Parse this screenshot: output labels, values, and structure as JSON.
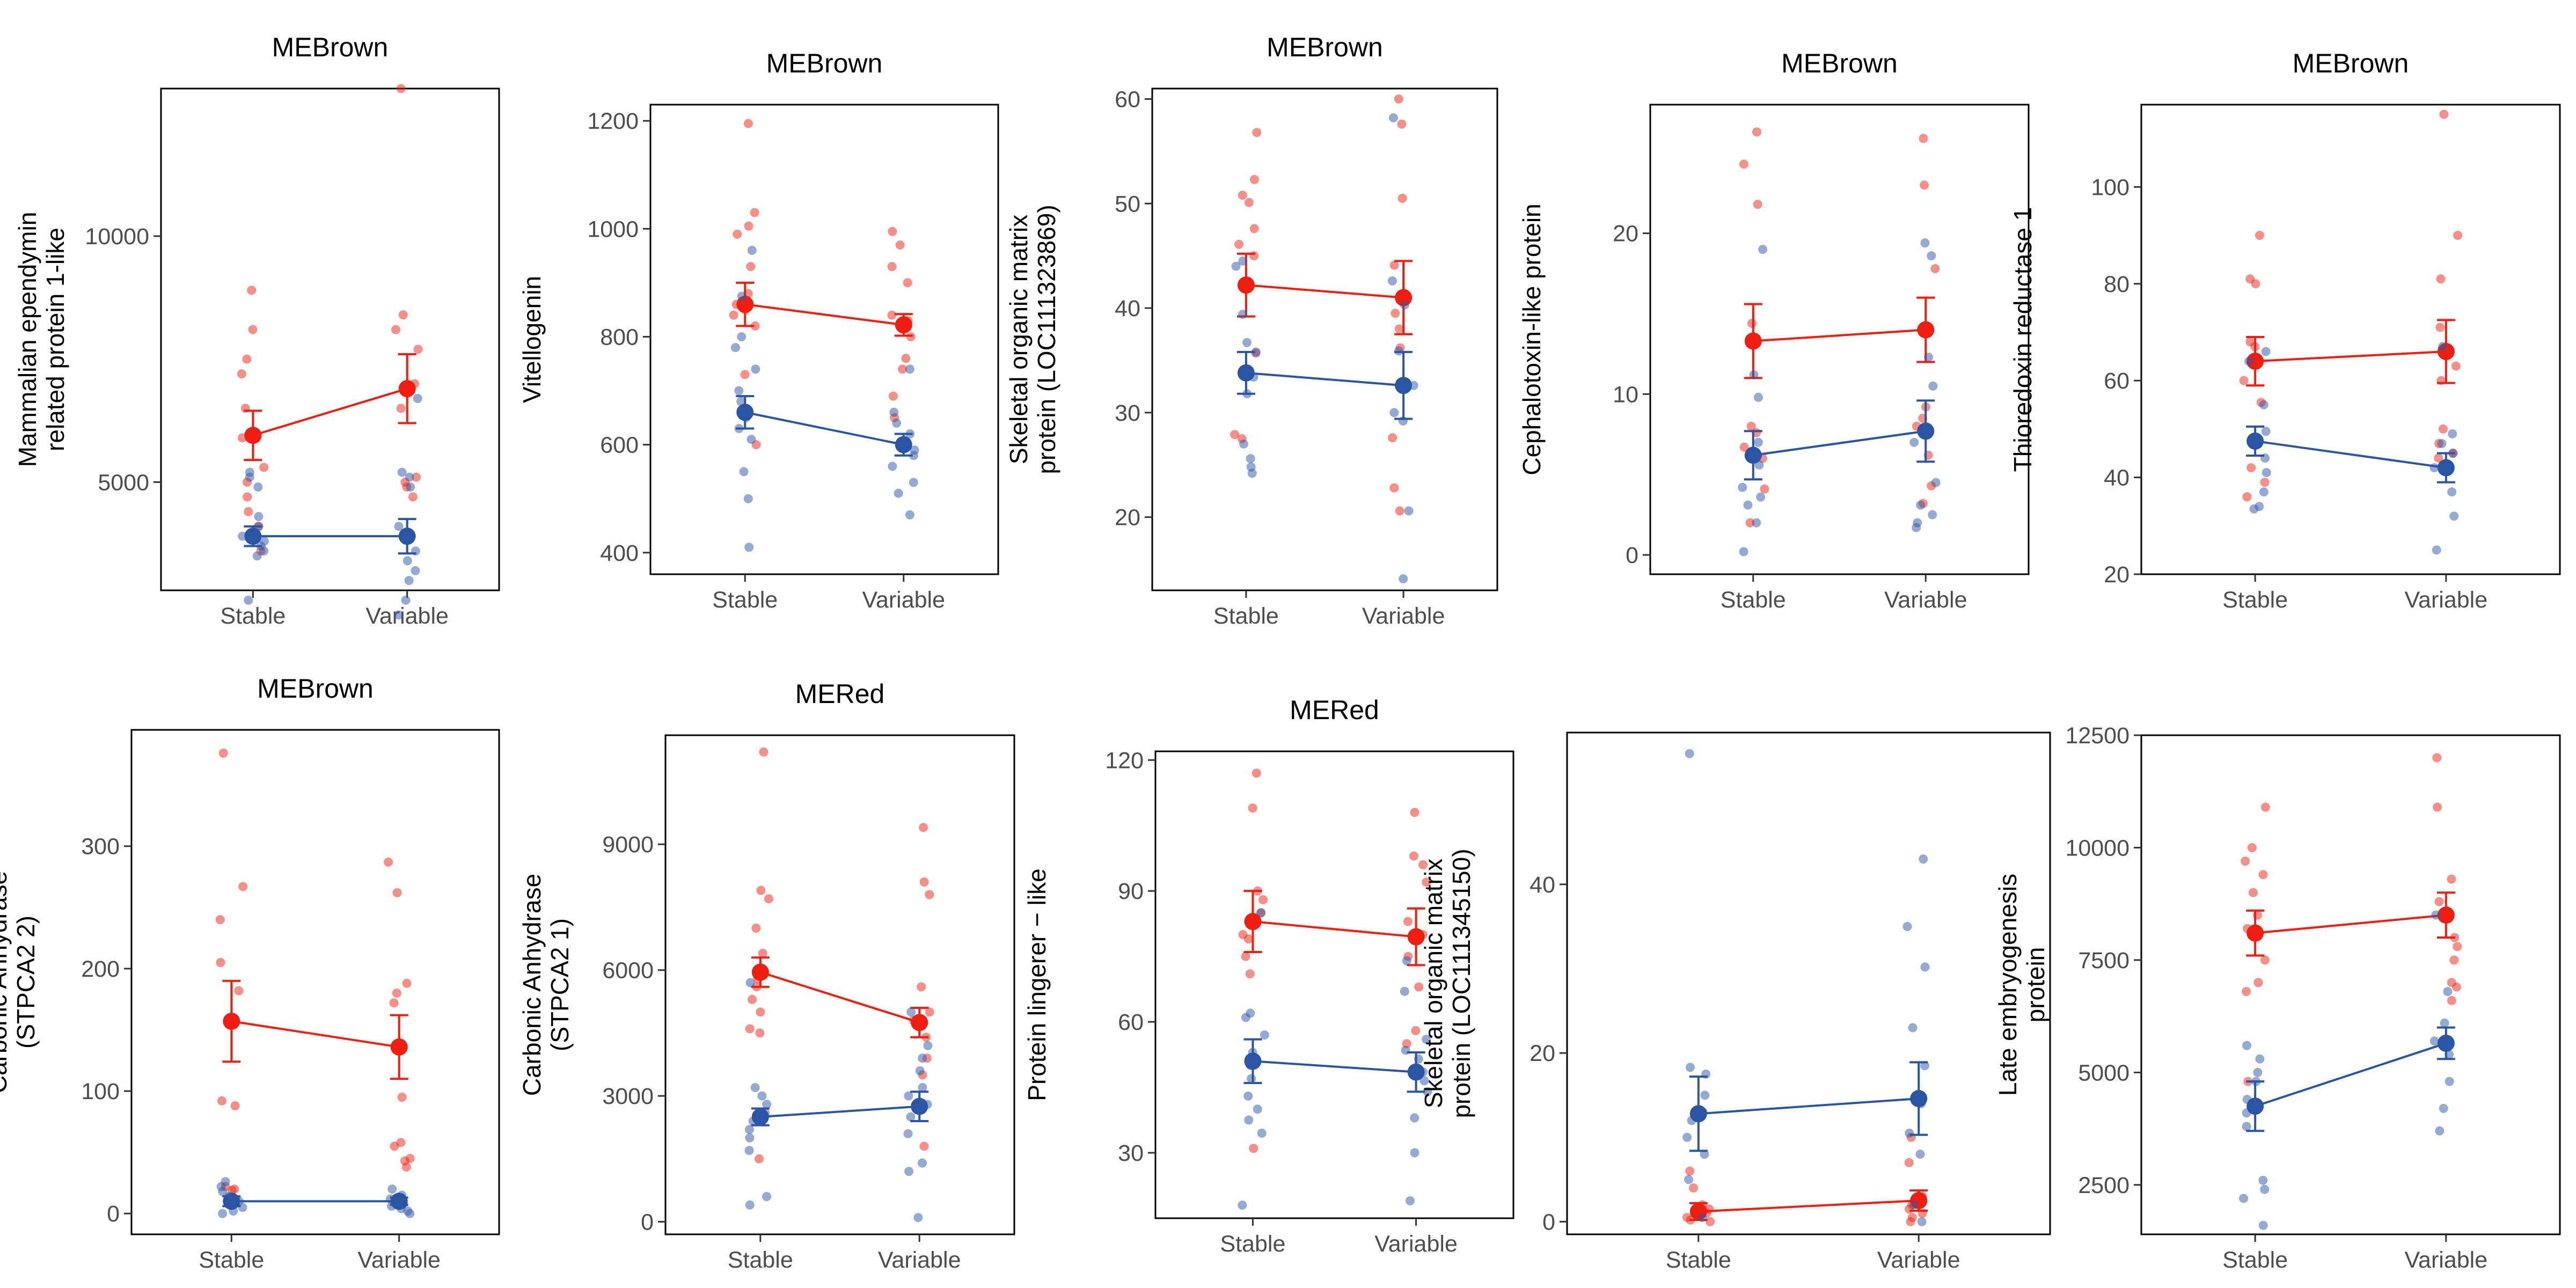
{
  "colors": {
    "red": "#f01e10",
    "blue": "#2a55a5"
  },
  "chart_data": [
    {
      "type": "scatter",
      "title": "MEBrown",
      "ylabel": [
        "Mammalian ependymin",
        "related protein 1-like"
      ],
      "categories": [
        "Stable",
        "Variable"
      ],
      "ylim": [
        2800,
        13000
      ],
      "yticks": [
        5000,
        10000
      ],
      "series": [
        {
          "color": "red",
          "means": [
            5950,
            6900
          ],
          "se": [
            500,
            700
          ],
          "points": [
            [
              8900,
              8100,
              7500,
              7200,
              6500,
              5900,
              5300,
              5000,
              4700,
              4400,
              4100,
              3600
            ],
            [
              13000,
              8400,
              8100,
              7700,
              7000,
              6500,
              5100,
              5000,
              4900,
              4700
            ]
          ]
        },
        {
          "color": "blue",
          "means": [
            3900,
            3900
          ],
          "se": [
            200,
            350
          ],
          "points": [
            [
              5200,
              5100,
              4900,
              4300,
              4100,
              3900,
              3800,
              3700,
              3600,
              3500,
              2600
            ],
            [
              6700,
              5200,
              5100,
              4900,
              4100,
              3600,
              3400,
              3200,
              3000,
              2600,
              2300
            ]
          ]
        }
      ]
    },
    {
      "type": "scatter",
      "title": "MEBrown",
      "ylabel": [
        "Vitellogenin"
      ],
      "categories": [
        "Stable",
        "Variable"
      ],
      "ylim": [
        360,
        1230
      ],
      "yticks": [
        400,
        600,
        800,
        1000,
        1200
      ],
      "series": [
        {
          "color": "red",
          "means": [
            860,
            822
          ],
          "se": [
            40,
            20
          ],
          "points": [
            [
              1195,
              1030,
              1005,
              990,
              930,
              880,
              860,
              850,
              840,
              820,
              730,
              600
            ],
            [
              995,
              970,
              930,
              900,
              840,
              830,
              820,
              800,
              760,
              740,
              690,
              650
            ]
          ]
        },
        {
          "color": "blue",
          "means": [
            660,
            600
          ],
          "se": [
            30,
            20
          ],
          "points": [
            [
              960,
              875,
              800,
              780,
              740,
              700,
              680,
              650,
              630,
              610,
              550,
              500,
              410
            ],
            [
              740,
              660,
              640,
              620,
              600,
              590,
              580,
              560,
              530,
              510,
              470
            ]
          ]
        }
      ]
    },
    {
      "type": "scatter",
      "title": "MEBrown",
      "ylabel": [
        "Skeletal organic matrix",
        "protein (LOC111323869)"
      ],
      "categories": [
        "Stable",
        "Variable"
      ],
      "ylim": [
        13,
        61
      ],
      "yticks": [
        20,
        30,
        40,
        50,
        60
      ],
      "series": [
        {
          "color": "red",
          "means": [
            42.2,
            41.0
          ],
          "se": [
            3.0,
            3.5
          ],
          "points": [
            [
              56.8,
              52.3,
              50.8,
              50.1,
              47.6,
              46.1,
              45.0,
              35.7,
              33.8,
              27.9,
              27.5
            ],
            [
              60.0,
              57.6,
              50.5,
              44.1,
              39.5,
              38.0,
              36.2,
              27.6,
              22.8,
              20.6
            ]
          ]
        },
        {
          "color": "blue",
          "means": [
            33.8,
            32.6
          ],
          "se": [
            2.0,
            3.2
          ],
          "points": [
            [
              44.5,
              44.0,
              39.4,
              36.7,
              35.8,
              33.4,
              31.8,
              27.0,
              25.6,
              24.8,
              24.2
            ],
            [
              58.2,
              42.6,
              40.3,
              35.9,
              32.6,
              30.0,
              29.2,
              20.6,
              14.1
            ]
          ]
        }
      ]
    },
    {
      "type": "scatter",
      "title": "MEBrown",
      "ylabel": [
        "Cephalotoxin-like protein"
      ],
      "categories": [
        "Stable",
        "Variable"
      ],
      "ylim": [
        -1.2,
        28
      ],
      "yticks": [
        0,
        10,
        20
      ],
      "series": [
        {
          "color": "red",
          "means": [
            13.3,
            14.0
          ],
          "se": [
            2.3,
            2.0
          ],
          "points": [
            [
              26.3,
              24.3,
              21.8,
              14.4,
              8.0,
              7.6,
              6.7,
              6.0,
              4.1,
              2.0
            ],
            [
              25.9,
              23.0,
              17.8,
              14.0,
              9.2,
              8.5,
              8.0,
              6.2,
              4.3,
              3.2
            ]
          ]
        },
        {
          "color": "blue",
          "means": [
            6.2,
            7.7
          ],
          "se": [
            1.5,
            1.9
          ],
          "points": [
            [
              19.0,
              11.2,
              9.8,
              7.0,
              5.6,
              4.2,
              3.6,
              3.1,
              2.0,
              0.2
            ],
            [
              19.4,
              18.6,
              12.3,
              10.5,
              7.0,
              4.5,
              3.1,
              2.5,
              2.0,
              1.7
            ]
          ]
        }
      ]
    },
    {
      "type": "scatter",
      "title": "MEBrown",
      "ylabel": [
        "Thioredoxin reductase 1"
      ],
      "categories": [
        "Stable",
        "Variable"
      ],
      "ylim": [
        20,
        117
      ],
      "yticks": [
        20,
        40,
        60,
        80,
        100
      ],
      "series": [
        {
          "color": "red",
          "means": [
            64.0,
            66.0
          ],
          "se": [
            5.0,
            6.5
          ],
          "points": [
            [
              90.0,
              81.0,
              80.0,
              68.0,
              67.0,
              60.0,
              55.5,
              48.0,
              42.0,
              39.0,
              36.0
            ],
            [
              115.0,
              90.0,
              81.0,
              71.0,
              63.0,
              60.0,
              50.0,
              47.0,
              45.0,
              44.0
            ]
          ]
        },
        {
          "color": "blue",
          "means": [
            47.5,
            42.0
          ],
          "se": [
            3.0,
            3.0
          ],
          "points": [
            [
              66.0,
              64.0,
              55.0,
              49.5,
              47.0,
              44.0,
              41.0,
              37.0,
              34.0,
              33.5
            ],
            [
              67.0,
              49.0,
              47.0,
              45.0,
              42.0,
              37.0,
              32.0,
              25.0
            ]
          ]
        }
      ]
    },
    {
      "type": "scatter",
      "title": "MEBrown",
      "ylabel": [
        "Carbonic Anhydrase",
        "(STPCA2 2)"
      ],
      "categories": [
        "Stable",
        "Variable"
      ],
      "ylim": [
        -17,
        395
      ],
      "yticks": [
        0,
        100,
        200,
        300
      ],
      "series": [
        {
          "color": "red",
          "means": [
            157,
            136
          ],
          "se": [
            33,
            26
          ],
          "points": [
            [
              376,
              267,
              240,
              205,
              182,
              92,
              88,
              22,
              20,
              19
            ],
            [
              287,
              262,
              188,
              180,
              172,
              95,
              58,
              55,
              45,
              43,
              38
            ]
          ]
        },
        {
          "color": "blue",
          "means": [
            10,
            10
          ],
          "se": [
            4,
            3
          ],
          "points": [
            [
              26,
              22,
              18,
              14,
              10,
              8,
              5,
              2,
              0
            ],
            [
              20,
              15,
              12,
              8,
              6,
              4,
              2,
              0
            ]
          ]
        }
      ]
    },
    {
      "type": "scatter",
      "title": "MERed",
      "ylabel": [
        "Carbonic Anhydrase",
        "(STPCA2 1)"
      ],
      "categories": [
        "Stable",
        "Variable"
      ],
      "ylim": [
        -300,
        11600
      ],
      "yticks": [
        0,
        3000,
        6000,
        9000
      ],
      "series": [
        {
          "color": "red",
          "means": [
            5950,
            4750
          ],
          "se": [
            350,
            350
          ],
          "points": [
            [
              11200,
              7900,
              7700,
              7000,
              6400,
              5800,
              5600,
              5300,
              5000,
              4600,
              4500,
              1500
            ],
            [
              9400,
              8100,
              7800,
              5600,
              5000,
              4800,
              4400,
              3900,
              3500,
              2700,
              1800
            ]
          ]
        },
        {
          "color": "blue",
          "means": [
            2500,
            2750
          ],
          "se": [
            200,
            350
          ],
          "points": [
            [
              5700,
              3200,
              3000,
              2800,
              2600,
              2400,
              2200,
              2000,
              1700,
              600,
              400
            ],
            [
              5000,
              4200,
              3900,
              3600,
              3200,
              3000,
              2800,
              2500,
              2100,
              1400,
              1200,
              100
            ]
          ]
        }
      ]
    },
    {
      "type": "scatter",
      "title": "MERed",
      "ylabel": [
        "Protein lingerer − like"
      ],
      "categories": [
        "Stable",
        "Variable"
      ],
      "ylim": [
        15,
        122
      ],
      "yticks": [
        30,
        60,
        90,
        120
      ],
      "series": [
        {
          "color": "red",
          "means": [
            83.0,
            79.5
          ],
          "se": [
            7.0,
            6.5
          ],
          "points": [
            [
              117,
              109,
              90,
              88,
              85,
              80,
              79,
              75,
              71,
              31
            ],
            [
              108,
              98,
              96,
              92,
              83,
              80,
              75,
              68,
              58,
              55
            ]
          ]
        },
        {
          "color": "blue",
          "means": [
            51.0,
            48.5
          ],
          "se": [
            5.0,
            4.5
          ],
          "points": [
            [
              85.0,
              62.0,
              61.0,
              57.0,
              53.0,
              50.0,
              47.0,
              43.0,
              40.0,
              37.5,
              34.5,
              18.0
            ],
            [
              74.0,
              67.0,
              56.0,
              53.5,
              51.5,
              48.5,
              46.5,
              44.0,
              38.0,
              30.0,
              19.0
            ]
          ]
        }
      ]
    },
    {
      "type": "scatter",
      "title": "",
      "ylabel": [
        "Skeletal organic matrix",
        "protein (LOC111345150)"
      ],
      "categories": [
        "Stable",
        "Variable"
      ],
      "ylim": [
        -1.5,
        58
      ],
      "yticks": [
        0,
        20,
        40
      ],
      "series": [
        {
          "color": "red",
          "means": [
            1.2,
            2.5
          ],
          "se": [
            1.0,
            1.2
          ],
          "points": [
            [
              6.0,
              4.0,
              2.0,
              1.5,
              1.0,
              0.5,
              0.2,
              0.0
            ],
            [
              10.0,
              7.0,
              3.0,
              2.0,
              1.5,
              1.0,
              0.5,
              0.0
            ]
          ]
        },
        {
          "color": "blue",
          "means": [
            12.8,
            14.6
          ],
          "se": [
            4.4,
            4.3
          ],
          "points": [
            [
              55.5,
              18.3,
              17.5,
              15.0,
              13.0,
              12.0,
              10.0,
              8.0,
              5.0,
              0.5
            ],
            [
              43.0,
              35.0,
              30.2,
              23.0,
              18.5,
              14.0,
              10.5,
              8.0,
              2.0,
              0.0
            ]
          ]
        }
      ]
    },
    {
      "type": "scatter",
      "title": "",
      "ylabel": [
        "Late embryogenesis",
        "protein"
      ],
      "categories": [
        "Stable",
        "Variable"
      ],
      "ylim": [
        1400,
        12500
      ],
      "yticks": [
        2500,
        5000,
        7500,
        10000,
        12500
      ],
      "series": [
        {
          "color": "red",
          "means": [
            8100,
            8500
          ],
          "se": [
            500,
            500
          ],
          "points": [
            [
              10900,
              10000,
              9700,
              9400,
              9000,
              8500,
              8200,
              7500,
              7000,
              6800,
              4800
            ],
            [
              12000,
              10900,
              9300,
              8800,
              8000,
              7800,
              7500,
              7000,
              6900,
              6600
            ]
          ]
        },
        {
          "color": "blue",
          "means": [
            4250,
            5650
          ],
          "se": [
            550,
            350
          ],
          "points": [
            [
              5600,
              5300,
              5000,
              4800,
              4400,
              4100,
              3800,
              2600,
              2400,
              2200,
              1600
            ],
            [
              8500,
              6800,
              6100,
              5700,
              5400,
              4800,
              4200,
              3700
            ]
          ]
        }
      ]
    }
  ]
}
